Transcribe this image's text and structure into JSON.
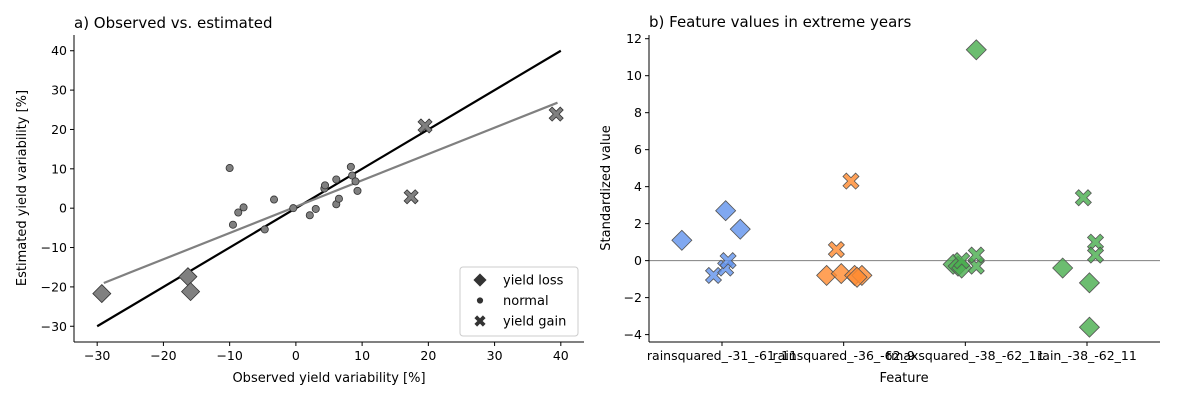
{
  "chart_data": [
    {
      "type": "scatter",
      "title": "a) Observed vs. estimated",
      "xlabel": "Observed yield variability [%]",
      "ylabel": "Estimated yield variability [%]",
      "xlim": [
        -33.5,
        43.5
      ],
      "ylim": [
        -34,
        44
      ],
      "xticks": [
        -30,
        -20,
        -10,
        0,
        10,
        20,
        30,
        40
      ],
      "yticks": [
        -30,
        -20,
        -10,
        0,
        10,
        20,
        30,
        40
      ],
      "grid": false,
      "legend_position": "lower-right",
      "legend": [
        {
          "label": "yield loss",
          "marker": "diamond"
        },
        {
          "label": "normal",
          "marker": "circle"
        },
        {
          "label": "yield gain",
          "marker": "x"
        }
      ],
      "lines": [
        {
          "kind": "identity",
          "color": "#000000",
          "x": [
            -30,
            40
          ],
          "y": [
            -30,
            40
          ]
        },
        {
          "kind": "fit",
          "color": "#808080",
          "x": [
            -29,
            39.5
          ],
          "y": [
            -19,
            26.8
          ]
        }
      ],
      "series": [
        {
          "name": "yield loss",
          "marker": "diamond",
          "points": [
            [
              -29.3,
              -21.7
            ],
            [
              -16.3,
              -17.4
            ],
            [
              -15.9,
              -21.2
            ]
          ]
        },
        {
          "name": "normal",
          "marker": "circle",
          "points": [
            [
              -10.0,
              10.2
            ],
            [
              -9.5,
              -4.2
            ],
            [
              -8.7,
              -1.1
            ],
            [
              -7.9,
              0.2
            ],
            [
              -4.7,
              -5.4
            ],
            [
              -3.3,
              2.2
            ],
            [
              -0.4,
              0.0
            ],
            [
              2.1,
              -1.8
            ],
            [
              3.0,
              -0.2
            ],
            [
              4.3,
              5.0
            ],
            [
              4.4,
              5.8
            ],
            [
              6.1,
              1.0
            ],
            [
              6.1,
              7.3
            ],
            [
              6.5,
              2.4
            ],
            [
              8.3,
              10.5
            ],
            [
              8.5,
              8.3
            ],
            [
              9.0,
              6.8
            ],
            [
              9.3,
              4.4
            ]
          ]
        },
        {
          "name": "yield gain",
          "marker": "x",
          "points": [
            [
              17.4,
              2.9
            ],
            [
              19.5,
              20.9
            ],
            [
              39.3,
              23.9
            ]
          ]
        }
      ],
      "colors": {
        "marker_fill": "#808080",
        "marker_edge": "#333333"
      }
    },
    {
      "type": "scatter",
      "title": "b) Feature values in extreme years",
      "xlabel": "Feature",
      "ylabel": "Standardized value",
      "categories": [
        "rainsquared_-31_-61_11",
        "rainsquared_-36_-62_9",
        "tmaxsquared_-38_-62_11",
        "rain_-38_-62_11"
      ],
      "ylim": [
        -4.4,
        12.2
      ],
      "yticks": [
        -4,
        -2,
        0,
        2,
        4,
        6,
        8,
        10,
        12
      ],
      "hline": 0,
      "grid": false,
      "series_colors": [
        "#6495ED",
        "#FF8C33",
        "#4CAF50",
        "#4CAF50"
      ],
      "series": [
        {
          "category": "rainsquared_-31_-61_11",
          "diamonds": [
            [
              -0.33,
              1.1
            ],
            [
              0.03,
              2.7
            ],
            [
              0.15,
              1.7
            ]
          ],
          "crosses": [
            [
              -0.07,
              -0.8
            ],
            [
              0.03,
              -0.4
            ],
            [
              0.05,
              0.0
            ]
          ]
        },
        {
          "category": "rainsquared_-36_-62_9",
          "diamonds": [
            [
              -0.14,
              -0.8
            ],
            [
              -0.02,
              -0.7
            ],
            [
              0.09,
              -0.8
            ],
            [
              0.15,
              -0.8
            ],
            [
              0.11,
              -0.9
            ]
          ],
          "crosses": [
            [
              -0.06,
              0.6
            ],
            [
              0.06,
              4.3
            ]
          ]
        },
        {
          "category": "tmaxsquared_-38_-62_11",
          "diamonds": [
            [
              -0.1,
              -0.2
            ],
            [
              -0.06,
              -0.3
            ],
            [
              -0.03,
              -0.4
            ],
            [
              0.09,
              11.4
            ]
          ],
          "crosses": [
            [
              0.09,
              -0.3
            ],
            [
              0.09,
              0.3
            ],
            [
              -0.03,
              0.0
            ]
          ]
        },
        {
          "category": "rain_-38_-62_11",
          "diamonds": [
            [
              -0.2,
              -0.4
            ],
            [
              0.02,
              -1.2
            ],
            [
              0.02,
              -3.6
            ]
          ],
          "crosses": [
            [
              -0.03,
              3.4
            ],
            [
              0.07,
              1.0
            ],
            [
              0.07,
              0.3
            ]
          ]
        }
      ]
    }
  ]
}
